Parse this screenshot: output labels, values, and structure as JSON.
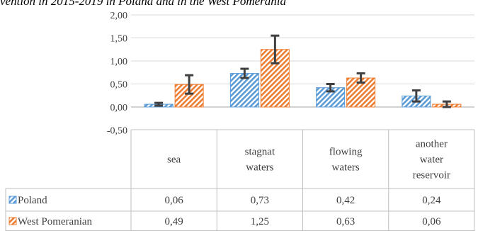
{
  "chart_data": {
    "type": "bar",
    "title": "vention in 2015-2019 in Poland and in the West Pomerania",
    "categories": [
      [
        "sea"
      ],
      [
        "stagnat",
        "waters"
      ],
      [
        "flowing",
        "waters"
      ],
      [
        "another",
        "water",
        "reservoir"
      ]
    ],
    "series": [
      {
        "name": "Poland",
        "color": "#5b9bd5",
        "values": [
          0.06,
          0.73,
          0.42,
          0.24
        ],
        "value_labels": [
          "0,06",
          "0,73",
          "0,42",
          "0,24"
        ],
        "error": [
          0.03,
          0.1,
          0.08,
          0.12
        ]
      },
      {
        "name": "West Pomeranian",
        "color": "#ed7d31",
        "values": [
          0.49,
          1.25,
          0.63,
          0.06
        ],
        "value_labels": [
          "0,49",
          "1,25",
          "0,63",
          "0,06"
        ],
        "error": [
          0.2,
          0.3,
          0.1,
          0.06
        ]
      }
    ],
    "ylim": [
      -0.5,
      2.0
    ],
    "yticks": [
      2.0,
      1.5,
      1.0,
      0.5,
      0.0,
      -0.5
    ],
    "ytick_labels": [
      "2,00",
      "1,50",
      "1,00",
      "0,50",
      "0,00",
      "-0,50"
    ],
    "grid": true,
    "legend": "data-table",
    "error_bar_color": "#404040"
  }
}
